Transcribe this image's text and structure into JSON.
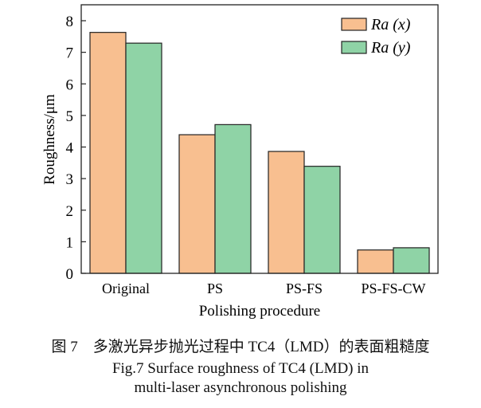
{
  "chart_data": {
    "type": "bar",
    "categories": [
      "Original",
      "PS",
      "PS-FS",
      "PS-FS-CW"
    ],
    "series": [
      {
        "name": "Ra (x)",
        "values": [
          7.63,
          4.39,
          3.86,
          0.74
        ]
      },
      {
        "name": "Ra (y)",
        "values": [
          7.29,
          4.71,
          3.39,
          0.81
        ]
      }
    ],
    "xlabel": "Polishing procedure",
    "ylabel": "Roughness/μm",
    "ylim": [
      0,
      8.4
    ],
    "yticks": [
      0,
      1,
      2,
      3,
      4,
      5,
      6,
      7,
      8
    ],
    "legend_position": "top-right",
    "grid": false,
    "colors": [
      "#f8bf90",
      "#8fd3a6"
    ]
  },
  "caption": {
    "cn": "图 7　多激光异步抛光过程中 TC4（LMD）的表面粗糙度",
    "en_line1": "Fig.7 Surface roughness of TC4 (LMD) in",
    "en_line2": "multi-laser asynchronous polishing"
  }
}
